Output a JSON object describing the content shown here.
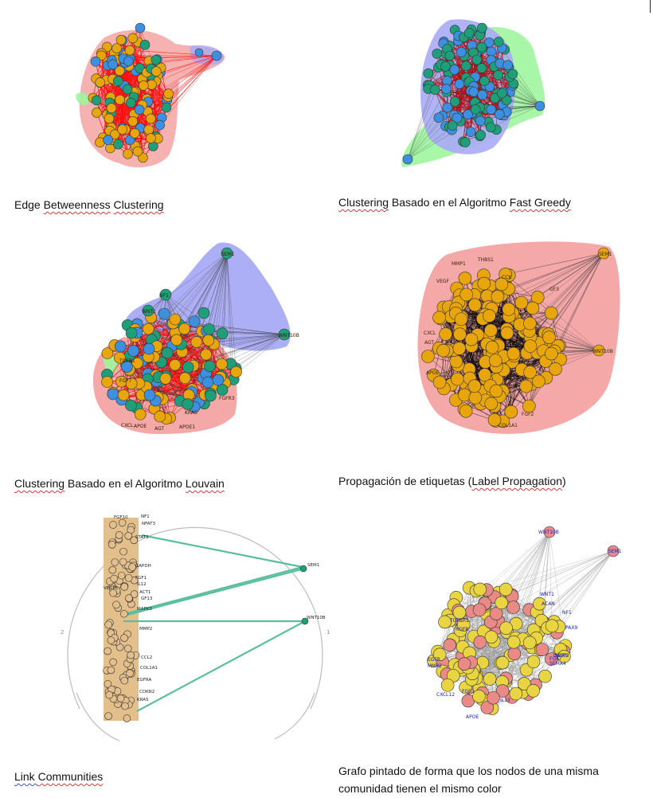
{
  "figures": [
    {
      "id": "edge-betweenness",
      "caption_parts": [
        {
          "text": "Edge ",
          "style": "plain"
        },
        {
          "text": "Betweenness",
          "style": "squiggle"
        },
        {
          "text": " ",
          "style": "plain"
        },
        {
          "text": "Clustering",
          "style": "squiggle"
        }
      ]
    },
    {
      "id": "fast-greedy",
      "caption_parts": [
        {
          "text": "Clustering",
          "style": "squiggle"
        },
        {
          "text": " Basado en el Algoritmo ",
          "style": "plain"
        },
        {
          "text": "Fast Greedy",
          "style": "squiggle"
        }
      ]
    },
    {
      "id": "louvain",
      "caption_parts": [
        {
          "text": "Clustering",
          "style": "squiggle"
        },
        {
          "text": " Basado en el Algoritmo ",
          "style": "plain"
        },
        {
          "text": "Louvain",
          "style": "squiggle"
        }
      ]
    },
    {
      "id": "label-propagation",
      "caption_parts": [
        {
          "text": "Propagación de etiquetas (",
          "style": "plain"
        },
        {
          "text": "Label Propagation",
          "style": "squiggle"
        },
        {
          "text": ")",
          "style": "plain"
        }
      ]
    },
    {
      "id": "link-communities",
      "caption_parts": [
        {
          "text": "Link ",
          "style": "squiggle-blue"
        },
        {
          "text": "Communities",
          "style": "squiggle"
        }
      ]
    },
    {
      "id": "colored-graph",
      "caption_parts": [
        {
          "text": "Grafo pintado de forma que los nodos de una misma comunidad tienen el mismo color",
          "style": "plain"
        }
      ]
    }
  ],
  "colors": {
    "orange_node": "#e8a50c",
    "teal_node": "#1f9e7a",
    "blue_node": "#3d8fe0",
    "red_edge": "#ff1010",
    "hull_red": "#f4a3a3",
    "hull_blue": "#a9abf5",
    "hull_green": "#9ff59f",
    "link_line": "#5bbf9f",
    "tan_band": "#e3bf8c",
    "pink_node": "#e98a86",
    "yellow_node": "#e9d542",
    "label_blue": "#1a1ab4"
  },
  "node_labels": {
    "louvain_visible": [
      "SEM1",
      "NF1",
      "WNT1",
      "WNT10B",
      "FGF7",
      "FGFR3",
      "CXCL",
      "APOE",
      "AGT",
      "APOE1",
      "TGFB1",
      "KRAS"
    ],
    "label_prop_visible": [
      "SEM1",
      "MMP1",
      "THBS1",
      "VEGF",
      "CCK",
      "GF3",
      "WNT10B",
      "COL1A1",
      "CXCL",
      "APOE",
      "AGT",
      "FGF2"
    ],
    "link_comm_visible": [
      "FGF10",
      "NF1",
      "NFAT3",
      "STAT3",
      "GAPDH",
      "FGF1",
      "IL12",
      "VEGFC",
      "ACT1",
      "GF13",
      "MAPK3",
      "MMP2",
      "CCL2",
      "COL1A1",
      "EGFRA",
      "CDKN2",
      "KRAS",
      "SEM1",
      "WNT10B"
    ],
    "colored_visible": [
      "WNT10B",
      "SEM1",
      "TGFBR1",
      "RGFR",
      "EGFR",
      "FGF7",
      "WNT1",
      "NF1",
      "KRAS",
      "ACAN",
      "CXCL12",
      "IL13",
      "MMP2",
      "FGF",
      "APOE",
      "PAX9",
      "SEMA4",
      "CASP3"
    ]
  },
  "link_communities_side_marks": [
    "2",
    "1"
  ]
}
